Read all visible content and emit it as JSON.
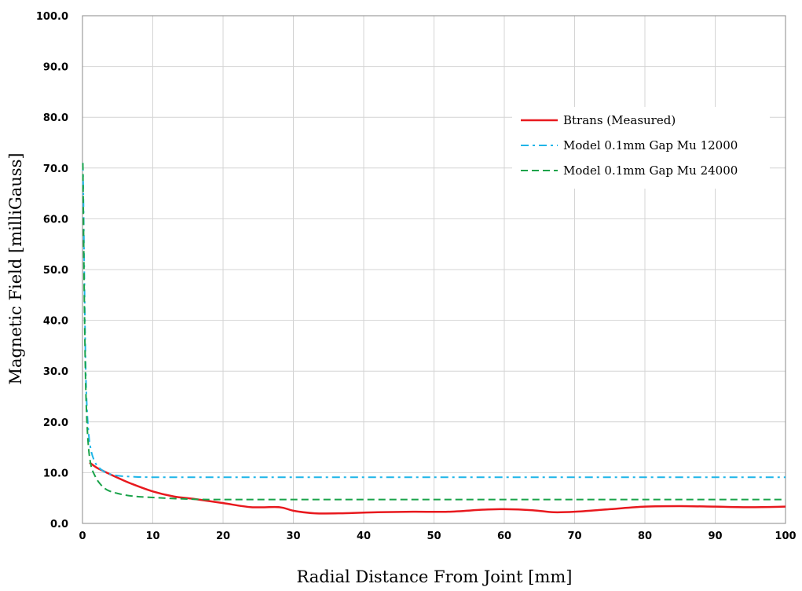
{
  "chart_data": {
    "type": "line",
    "title": "",
    "xlabel": "Radial Distance From Joint  [mm]",
    "ylabel": "Magnetic  Field  [milliGauss]",
    "xlim": [
      0,
      100
    ],
    "ylim": [
      0,
      100
    ],
    "x_ticks": [
      "0",
      "10",
      "20",
      "30",
      "40",
      "50",
      "60",
      "70",
      "80",
      "90",
      "100"
    ],
    "y_ticks": [
      "0.0",
      "10.0",
      "20.0",
      "30.0",
      "40.0",
      "50.0",
      "60.0",
      "70.0",
      "80.0",
      "90.0",
      "100.0"
    ],
    "grid": true,
    "legend_position": "upper-right",
    "series": [
      {
        "name": "Btrans (Measured)",
        "color": "#e8191e",
        "style": "solid",
        "x": [
          1,
          2,
          3,
          5,
          7,
          10,
          13,
          16,
          20,
          24,
          28,
          30,
          33,
          37,
          42,
          47,
          52,
          57,
          60,
          64,
          67,
          70,
          75,
          80,
          85,
          90,
          95,
          100
        ],
        "y": [
          12.0,
          11.0,
          10.3,
          9.0,
          7.8,
          6.3,
          5.3,
          4.8,
          4.0,
          3.2,
          3.2,
          2.5,
          2.0,
          2.0,
          2.2,
          2.3,
          2.3,
          2.7,
          2.8,
          2.6,
          2.2,
          2.3,
          2.8,
          3.3,
          3.4,
          3.3,
          3.2,
          3.3
        ]
      },
      {
        "name": "Model 0.1mm Gap Mu 12000",
        "color": "#1fb5e8",
        "style": "dashdot",
        "x": [
          0.05,
          0.15,
          0.3,
          0.5,
          0.8,
          1.2,
          1.8,
          2.5,
          3.5,
          5,
          7,
          10,
          20,
          40,
          60,
          80,
          100
        ],
        "y": [
          71,
          62,
          45,
          28,
          19,
          14.5,
          12,
          10.8,
          9.9,
          9.4,
          9.2,
          9.1,
          9.1,
          9.1,
          9.1,
          9.1,
          9.1
        ]
      },
      {
        "name": "Model 0.1mm Gap Mu 24000",
        "color": "#1aa34a",
        "style": "dashed",
        "x": [
          0.05,
          0.15,
          0.3,
          0.5,
          0.8,
          1.2,
          1.8,
          2.5,
          3.5,
          5,
          7,
          10,
          15,
          20,
          40,
          60,
          80,
          100
        ],
        "y": [
          71,
          58,
          40,
          25,
          16,
          11.5,
          9.3,
          7.8,
          6.6,
          5.9,
          5.4,
          5.1,
          4.8,
          4.7,
          4.7,
          4.7,
          4.7,
          4.7
        ]
      }
    ]
  }
}
